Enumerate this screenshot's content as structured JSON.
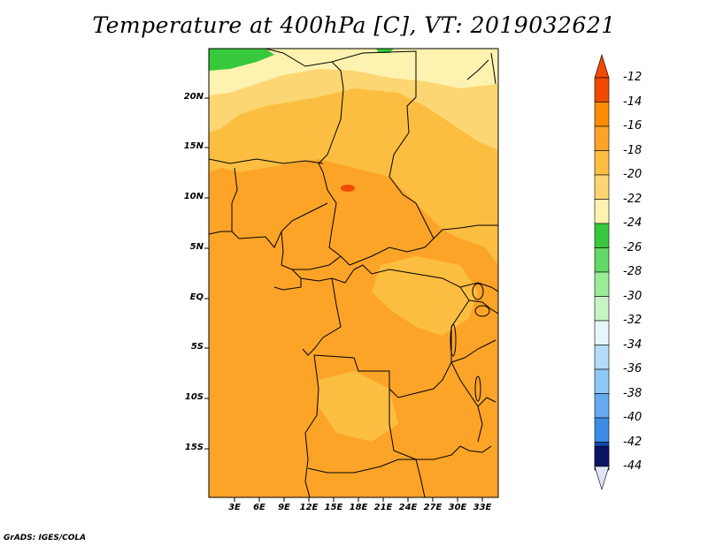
{
  "title": "Temperature at 400hPa [C], VT: 2019032621",
  "credit": "GrADS: IGES/COLA",
  "axes": {
    "lat_labels": [
      "20N",
      "15N",
      "10N",
      "5N",
      "EQ",
      "5S",
      "10S",
      "15S"
    ],
    "lon_labels": [
      "3E",
      "6E",
      "9E",
      "12E",
      "15E",
      "18E",
      "21E",
      "24E",
      "27E",
      "30E",
      "33E"
    ]
  },
  "colorbar": {
    "labels": [
      "-12",
      "-14",
      "-16",
      "-18",
      "-20",
      "-22",
      "-24",
      "-26",
      "-28",
      "-30",
      "-32",
      "-34",
      "-36",
      "-38",
      "-40",
      "-42",
      "-44"
    ],
    "colors": [
      "#f04a00",
      "#fa8c00",
      "#fca428",
      "#fcbe40",
      "#fcd672",
      "#fdf2b0",
      "#38c83c",
      "#62d866",
      "#9aec96",
      "#c8f4c4",
      "#e6f6fa",
      "#b4dcf8",
      "#8cc8f4",
      "#64aaf0",
      "#3c8ce6",
      "#2468d8",
      "#1448b8",
      "#0c2c94",
      "#0a1464",
      "#e0e4f8"
    ]
  }
}
